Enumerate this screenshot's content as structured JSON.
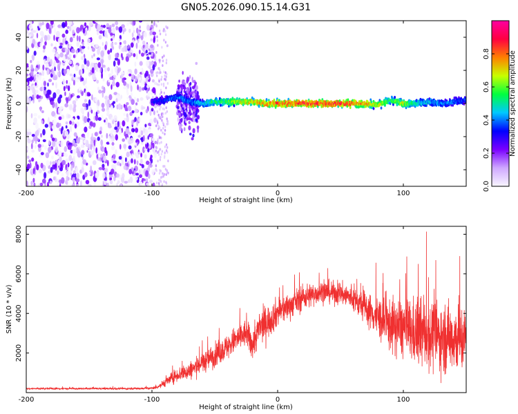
{
  "figure_title": "GN05.2026.090.15.14.G31",
  "chart_data": [
    {
      "type": "heatmap",
      "title": "GN05.2026.090.15.14.G31",
      "xlabel": "Height of straight line (km)",
      "ylabel": "Frequency (Hz)",
      "xlim": [
        -200,
        150
      ],
      "ylim": [
        -50,
        50
      ],
      "xticks": [
        -200,
        -100,
        0,
        100
      ],
      "xtick_labels": [
        "-200",
        "-100",
        "0",
        "100"
      ],
      "yticks": [
        -40,
        -20,
        0,
        20,
        40
      ],
      "ytick_labels": [
        "-40",
        "-20",
        "0",
        "20",
        "40"
      ],
      "noise_region_x": [
        -200,
        -97
      ],
      "burst_region_x": [
        -80,
        -63
      ],
      "signal_track": {
        "x": [
          -100,
          -90,
          -80,
          -70,
          -60,
          -50,
          -40,
          -30,
          -20,
          -10,
          0,
          10,
          20,
          30,
          40,
          50,
          60,
          70,
          80,
          90,
          100,
          110,
          120,
          130,
          140,
          150
        ],
        "freq": [
          1,
          2,
          4,
          1,
          0,
          1,
          1,
          1,
          1,
          0,
          0,
          0,
          0,
          0,
          0,
          0,
          0,
          0,
          -1,
          2,
          0,
          0,
          1,
          0,
          1,
          2
        ],
        "amplitude": [
          0.35,
          0.4,
          0.45,
          0.45,
          0.5,
          0.6,
          0.65,
          0.75,
          0.8,
          0.85,
          0.9,
          0.9,
          0.95,
          0.95,
          0.95,
          0.95,
          0.9,
          0.85,
          0.75,
          0.6,
          0.75,
          0.55,
          0.5,
          0.45,
          0.45,
          0.4
        ]
      },
      "colorbar": {
        "label": "Normalized spectral amplitude",
        "range": [
          0.0,
          1.0
        ],
        "ticks": [
          0.0,
          0.2,
          0.4,
          0.6,
          0.8
        ],
        "tick_labels": [
          "0.0",
          "0.2",
          "0.4",
          "0.6",
          "0.8"
        ],
        "colors": [
          "#f8f6ff",
          "#cfa8ff",
          "#7a00ff",
          "#0000ff",
          "#00c8ff",
          "#00ff40",
          "#c8ff00",
          "#ff8000",
          "#ff0040",
          "#ff00a0"
        ]
      }
    },
    {
      "type": "line",
      "xlabel": "Height of straight line (km)",
      "ylabel": "SNR (10 * v/v)",
      "xlim": [
        -200,
        150
      ],
      "ylim": [
        0,
        8400
      ],
      "xticks": [
        -200,
        -100,
        0,
        100
      ],
      "xtick_labels": [
        "-200",
        "-100",
        "0",
        "100"
      ],
      "yticks": [
        2000,
        4000,
        6000,
        8000
      ],
      "ytick_labels": [
        "2000",
        "4000",
        "6000",
        "8000"
      ],
      "series": [
        {
          "name": "SNR",
          "color": "#f03030",
          "x": [
            -200,
            -180,
            -160,
            -140,
            -120,
            -100,
            -95,
            -90,
            -85,
            -80,
            -75,
            -70,
            -65,
            -60,
            -55,
            -50,
            -45,
            -40,
            -35,
            -30,
            -25,
            -20,
            -15,
            -10,
            -5,
            0,
            5,
            10,
            15,
            20,
            25,
            30,
            35,
            40,
            45,
            50,
            55,
            60,
            65,
            70,
            75,
            80,
            85,
            90,
            95,
            100,
            105,
            110,
            115,
            120,
            125,
            130,
            135,
            140,
            145,
            150
          ],
          "values": [
            200,
            200,
            200,
            200,
            200,
            220,
            300,
            500,
            700,
            900,
            1000,
            1100,
            1300,
            1500,
            1700,
            1900,
            2100,
            2300,
            2600,
            2800,
            3000,
            2400,
            3200,
            3500,
            3700,
            4100,
            4200,
            4400,
            4600,
            4800,
            4900,
            5000,
            5100,
            5100,
            5000,
            5000,
            4900,
            4700,
            4500,
            4300,
            4000,
            3800,
            3500,
            3400,
            3300,
            3300,
            3100,
            3000,
            3000,
            2900,
            2900,
            2800,
            2800,
            2800,
            2700,
            2700
          ],
          "spread": [
            60,
            60,
            60,
            60,
            60,
            80,
            150,
            300,
            400,
            500,
            600,
            650,
            700,
            750,
            800,
            850,
            900,
            900,
            950,
            1000,
            1000,
            1100,
            1200,
            1200,
            1100,
            1100,
            1000,
            900,
            900,
            900,
            900,
            800,
            800,
            800,
            800,
            800,
            900,
            900,
            1000,
            1100,
            1300,
            1500,
            1700,
            1900,
            2100,
            2200,
            2300,
            2400,
            2400,
            2500,
            2500,
            2500,
            2500,
            2500,
            2500,
            2500
          ]
        }
      ]
    }
  ]
}
